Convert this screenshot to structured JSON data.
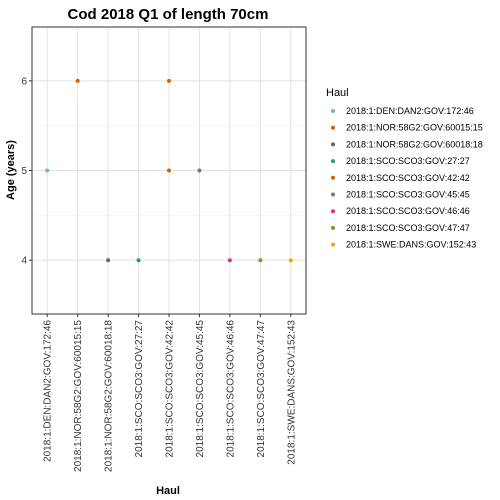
{
  "chart_data": {
    "type": "scatter",
    "title": "Cod 2018 Q1 of length 70cm",
    "xlabel": "Haul",
    "ylabel": "Age (years)",
    "ylim": [
      3.4,
      6.6
    ],
    "yticks": [
      4,
      5,
      6
    ],
    "grid": true,
    "legend_title": "Haul",
    "legend_position": "right",
    "categories": [
      "2018:1:DEN:DAN2:GOV:172:46",
      "2018:1:NOR:58G2:GOV:60015:15",
      "2018:1:NOR:58G2:GOV:60018:18",
      "2018:1:SCO:SCO3:GOV:27:27",
      "2018:1:SCO:SCO3:GOV:42:42",
      "2018:1:SCO:SCO3:GOV:45:45",
      "2018:1:SCO:SCO3:GOV:46:46",
      "2018:1:SCO:SCO3:GOV:47:47",
      "2018:1:SWE:DANS:GOV:152:43"
    ],
    "colors": [
      "#66c2a5",
      "#d95f02",
      "#666666",
      "#1b9e77",
      "#d95f02",
      "#7570b3",
      "#e7298a",
      "#66a61e",
      "#e6ab02"
    ],
    "points": [
      {
        "x": "2018:1:DEN:DAN2:GOV:172:46",
        "y": 5
      },
      {
        "x": "2018:1:NOR:58G2:GOV:60015:15",
        "y": 6
      },
      {
        "x": "2018:1:NOR:58G2:GOV:60018:18",
        "y": 4
      },
      {
        "x": "2018:1:SCO:SCO3:GOV:27:27",
        "y": 4
      },
      {
        "x": "2018:1:SCO:SCO3:GOV:42:42",
        "y": 6
      },
      {
        "x": "2018:1:SCO:SCO3:GOV:42:42",
        "y": 5
      },
      {
        "x": "2018:1:SCO:SCO3:GOV:45:45",
        "y": 5
      },
      {
        "x": "2018:1:SCO:SCO3:GOV:46:46",
        "y": 4
      },
      {
        "x": "2018:1:SCO:SCO3:GOV:47:47",
        "y": 4
      },
      {
        "x": "2018:1:SWE:DANS:GOV:152:43",
        "y": 4
      }
    ]
  }
}
